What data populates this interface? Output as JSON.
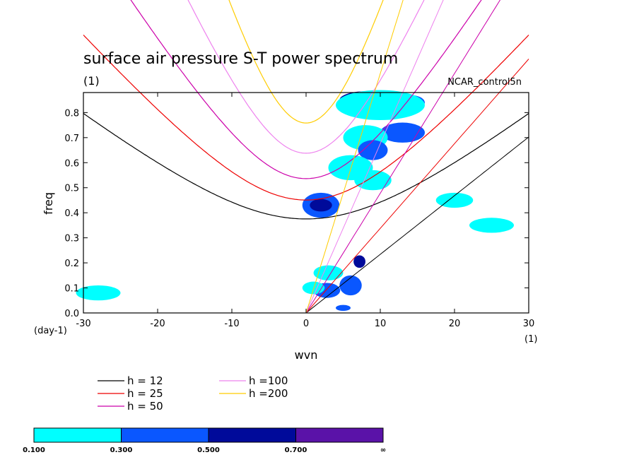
{
  "chart_data": {
    "type": "contour",
    "title": "surface air pressure S-T power spectrum",
    "subtitle_left": "(1)",
    "subtitle_right": "NCAR_control5n",
    "xlabel": "wvn",
    "ylabel": "freq",
    "x_unit": "(1)",
    "y_unit": "(day-1)",
    "xlim": [
      -30,
      30
    ],
    "ylim": [
      0.0,
      0.88
    ],
    "x_ticks": [
      -30,
      -20,
      -10,
      0,
      10,
      20,
      30
    ],
    "y_ticks": [
      0.0,
      0.1,
      0.2,
      0.3,
      0.4,
      0.5,
      0.6,
      0.7,
      0.8
    ],
    "contour_levels": [
      "0.100",
      "0.300",
      "0.500",
      "0.700",
      "∞"
    ],
    "level_colors": [
      "#00ffff",
      "#0a57ff",
      "#000a9a",
      "#5a12a8"
    ],
    "dispersion_curves": [
      {
        "name": "h = 12",
        "h": 12,
        "color": "#000000"
      },
      {
        "name": "h = 25",
        "h": 25,
        "color": "#ee0000"
      },
      {
        "name": "h = 50",
        "h": 50,
        "color": "#cc00aa"
      },
      {
        "name": "h =100",
        "h": 100,
        "color": "#ee82ee"
      },
      {
        "name": "h =200",
        "h": 200,
        "color": "#ffcc00"
      }
    ],
    "spectral_blobs": [
      {
        "x": 8,
        "y": 0.85,
        "w": 3.5,
        "h": 0.035,
        "level": 3
      },
      {
        "x": 14,
        "y": 0.84,
        "w": 2,
        "h": 0.03,
        "level": 2
      },
      {
        "x": 10,
        "y": 0.83,
        "w": 6,
        "h": 0.06,
        "level": 1
      },
      {
        "x": 13,
        "y": 0.72,
        "w": 3,
        "h": 0.04,
        "level": 2
      },
      {
        "x": 8,
        "y": 0.7,
        "w": 3,
        "h": 0.05,
        "level": 1
      },
      {
        "x": 9,
        "y": 0.65,
        "w": 2,
        "h": 0.04,
        "level": 2
      },
      {
        "x": 9,
        "y": 0.53,
        "w": 2.5,
        "h": 0.04,
        "level": 1
      },
      {
        "x": 2,
        "y": 0.43,
        "w": 2.5,
        "h": 0.05,
        "level": 2
      },
      {
        "x": 2,
        "y": 0.43,
        "w": 1.5,
        "h": 0.025,
        "level": 3
      },
      {
        "x": 6,
        "y": 0.58,
        "w": 3,
        "h": 0.05,
        "level": 1
      },
      {
        "x": 6,
        "y": 0.11,
        "w": 0.9,
        "h": 0.025,
        "level": 4
      },
      {
        "x": 6,
        "y": 0.11,
        "w": 1.5,
        "h": 0.04,
        "level": 2
      },
      {
        "x": 7.2,
        "y": 0.205,
        "w": 0.8,
        "h": 0.025,
        "level": 3
      },
      {
        "x": 2.8,
        "y": 0.09,
        "w": 1.8,
        "h": 0.03,
        "level": 2
      },
      {
        "x": 1,
        "y": 0.1,
        "w": 1.5,
        "h": 0.025,
        "level": 1
      },
      {
        "x": 3,
        "y": 0.16,
        "w": 2,
        "h": 0.03,
        "level": 1
      },
      {
        "x": 5,
        "y": 0.02,
        "w": 1,
        "h": 0.012,
        "level": 2
      },
      {
        "x": -28,
        "y": 0.08,
        "w": 3,
        "h": 0.03,
        "level": 1
      },
      {
        "x": 20,
        "y": 0.45,
        "w": 2.5,
        "h": 0.03,
        "level": 1
      },
      {
        "x": 25,
        "y": 0.35,
        "w": 3,
        "h": 0.03,
        "level": 1
      }
    ]
  },
  "legend_entries": [
    "h = 12",
    "h = 25",
    "h = 50",
    "h =100",
    "h =200"
  ]
}
